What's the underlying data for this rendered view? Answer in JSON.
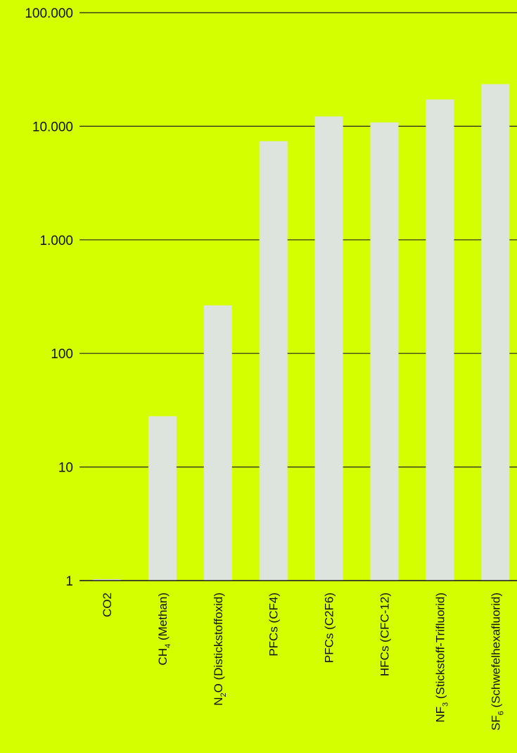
{
  "colors": {
    "background": "#d4ff00",
    "bar": "#dde3dd",
    "gridline": "#222222",
    "text": "#111111"
  },
  "chart_data": {
    "type": "bar",
    "title": "",
    "xlabel": "",
    "ylabel": "",
    "y_scale": "log",
    "ylim": [
      1,
      100000
    ],
    "grid": true,
    "y_ticks": [
      {
        "value": 1,
        "label": "1"
      },
      {
        "value": 10,
        "label": "10"
      },
      {
        "value": 100,
        "label": "100"
      },
      {
        "value": 1000,
        "label": "1.000"
      },
      {
        "value": 10000,
        "label": "10.000"
      },
      {
        "value": 100000,
        "label": "100.000"
      }
    ],
    "categories": [
      {
        "text": "CO2"
      },
      {
        "text": "CH",
        "sub": "4",
        "rest": " (Methan)"
      },
      {
        "text": "N",
        "sub": "2",
        "rest": "O (Distickstoffoxid)"
      },
      {
        "text": "PFCs (CF4)"
      },
      {
        "text": "PFCs (C2F6)"
      },
      {
        "text": "HFCs (CFC-12)"
      },
      {
        "text": "NF",
        "sub": "3",
        "rest": " (Stickstoff-Trifluorid)"
      },
      {
        "text": "SF",
        "sub": "6",
        "rest": " (Schwefelhexafluorid)"
      }
    ],
    "values": [
      1,
      28,
      265,
      7390,
      12200,
      10800,
      17200,
      23500
    ]
  }
}
